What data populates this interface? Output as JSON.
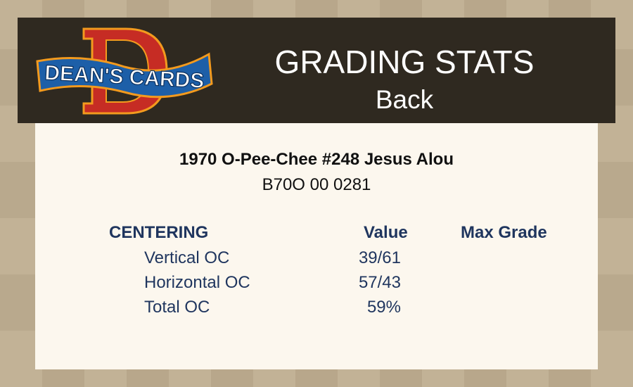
{
  "header": {
    "logo_text": "DEAN'S CARDS",
    "title": "GRADING STATS",
    "subtitle": "Back"
  },
  "card": {
    "title": "1970 O-Pee-Chee #248 Jesus Alou",
    "cert": "B70O 00 0281"
  },
  "table": {
    "section": "CENTERING",
    "value_header": "Value",
    "max_grade_header": "Max Grade",
    "rows": [
      {
        "label": "Vertical OC",
        "value": "39/61"
      },
      {
        "label": "Horizontal OC",
        "value": "57/43"
      },
      {
        "label": "Total OC",
        "value": "59%"
      }
    ]
  },
  "colors": {
    "header_bg": "#2f2920",
    "panel_bg": "#fcf7ee",
    "table_text": "#1f355e",
    "logo_red": "#c62c24",
    "logo_blue": "#1d5fa8"
  }
}
